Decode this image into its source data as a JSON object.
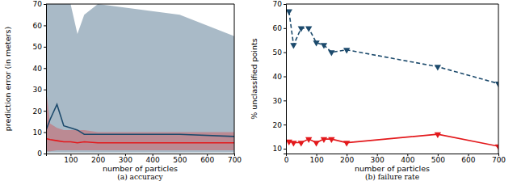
{
  "chart_data": [
    {
      "type": "line",
      "title": "(a) accuracy",
      "x_label": "number of particles",
      "y_label": "prediction error (in meters)",
      "x": [
        10,
        25,
        50,
        75,
        100,
        125,
        150,
        200,
        500,
        700
      ],
      "xlim": [
        10,
        700
      ],
      "xticks": [
        100,
        200,
        300,
        400,
        500,
        600,
        700
      ],
      "ylim": [
        0,
        70
      ],
      "yticks": [
        0,
        10,
        20,
        30,
        40,
        50,
        60,
        70
      ],
      "series": [
        {
          "color": "#1c4a6c",
          "line_style": "solid",
          "values": [
            11,
            16,
            23,
            13,
            12,
            11,
            9,
            9,
            9,
            8
          ],
          "lower": [
            0.5,
            0.5,
            0.5,
            0.5,
            0.5,
            0.5,
            0.5,
            0.5,
            0.5,
            0.5
          ],
          "upper": [
            70,
            70,
            70,
            70,
            70,
            56,
            65,
            70,
            65,
            55
          ]
        },
        {
          "color": "#e3191c",
          "line_style": "solid",
          "values": [
            7,
            6.5,
            6,
            5.5,
            5.5,
            5,
            5.5,
            5,
            5,
            5
          ],
          "lower": [
            1,
            1,
            1.5,
            1.5,
            1.5,
            1.5,
            1.5,
            1.5,
            1.5,
            1.5
          ],
          "upper": [
            30,
            14,
            12,
            11,
            11,
            11,
            11,
            10,
            10,
            10
          ]
        }
      ]
    },
    {
      "type": "line",
      "title": "(b) failure rate",
      "x_label": "number of particles",
      "y_label": "% unclassified points",
      "x": [
        10,
        25,
        50,
        75,
        100,
        125,
        150,
        200,
        500,
        700
      ],
      "xlim": [
        0,
        700
      ],
      "xticks": [
        0,
        100,
        200,
        300,
        400,
        500,
        600,
        700
      ],
      "ylim": [
        8,
        70
      ],
      "yticks": [
        10,
        20,
        30,
        40,
        50,
        60,
        70
      ],
      "series": [
        {
          "color": "#1c4a6c",
          "line_style": "dashed",
          "marker": "triangle-down",
          "values": [
            67,
            53,
            60,
            60,
            54,
            53,
            50,
            51,
            44,
            37
          ]
        },
        {
          "color": "#e3191c",
          "line_style": "solid",
          "marker": "triangle-down",
          "values": [
            13,
            12.5,
            12.5,
            14,
            12.5,
            14,
            14,
            12.5,
            16,
            11
          ]
        }
      ]
    }
  ]
}
